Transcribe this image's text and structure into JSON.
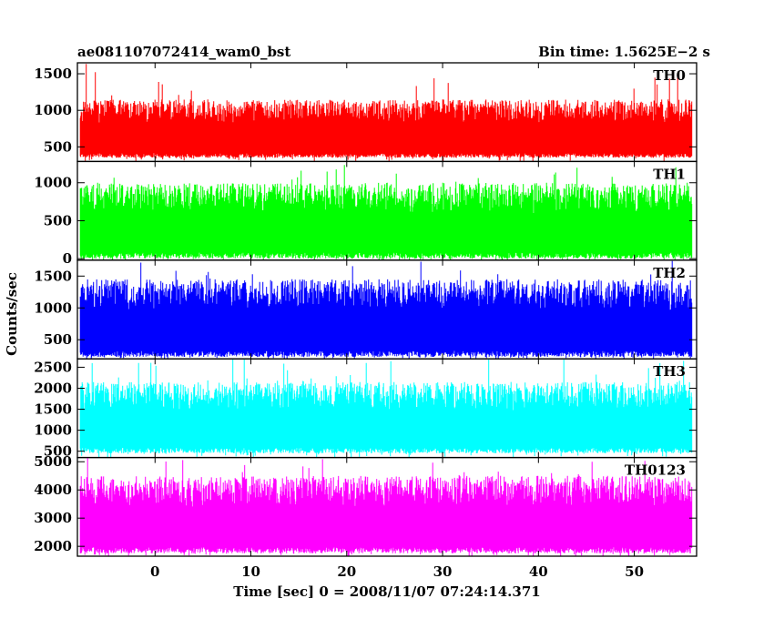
{
  "header": {
    "title": "ae081107072414_wam0_bst",
    "bin_time": "Bin time: 1.5625E−2 s"
  },
  "chart_data": {
    "type": "line",
    "xlabel": "Time [sec] 0 = 2008/11/07 07:24:14.371",
    "ylabel": "Counts/sec",
    "xlim": [
      -8.1,
      56.5
    ],
    "x_range": [
      -7.8,
      56.0
    ],
    "x_ticks": [
      0,
      10,
      20,
      30,
      40,
      50
    ],
    "x_tick_labels": [
      "0",
      "10",
      "20",
      "30",
      "40",
      "50"
    ],
    "panels": [
      {
        "name": "TH0",
        "color": "#ff0000",
        "ylim": [
          300,
          1650
        ],
        "y_ticks": [
          500,
          1000,
          1500
        ],
        "y_tick_labels": [
          "500",
          "1000",
          "1500"
        ],
        "baseline": 350,
        "peak_typical": 1150,
        "peak_max": 1650
      },
      {
        "name": "TH1",
        "color": "#00ff00",
        "ylim": [
          -20,
          1280
        ],
        "y_ticks": [
          0,
          500,
          1000
        ],
        "y_tick_labels": [
          "0",
          "500",
          "1000"
        ],
        "baseline": 0,
        "peak_typical": 1000,
        "peak_max": 1280
      },
      {
        "name": "TH2",
        "color": "#0000ff",
        "ylim": [
          200,
          1750
        ],
        "y_ticks": [
          500,
          1000,
          1500
        ],
        "y_tick_labels": [
          "500",
          "1000",
          "1500"
        ],
        "baseline": 230,
        "peak_typical": 1450,
        "peak_max": 1750
      },
      {
        "name": "TH3",
        "color": "#00ffff",
        "ylim": [
          350,
          2700
        ],
        "y_ticks": [
          500,
          1000,
          1500,
          2000,
          2500
        ],
        "y_tick_labels": [
          "500",
          "1000",
          "1500",
          "2000",
          "2500"
        ],
        "baseline": 450,
        "peak_typical": 2150,
        "peak_max": 2700
      },
      {
        "name": "TH0123",
        "color": "#ff00ff",
        "ylim": [
          1650,
          5150
        ],
        "y_ticks": [
          2000,
          3000,
          4000,
          5000
        ],
        "y_tick_labels": [
          "2000",
          "3000",
          "4000",
          "5000"
        ],
        "baseline": 1750,
        "peak_typical": 4500,
        "peak_max": 5150
      }
    ]
  }
}
